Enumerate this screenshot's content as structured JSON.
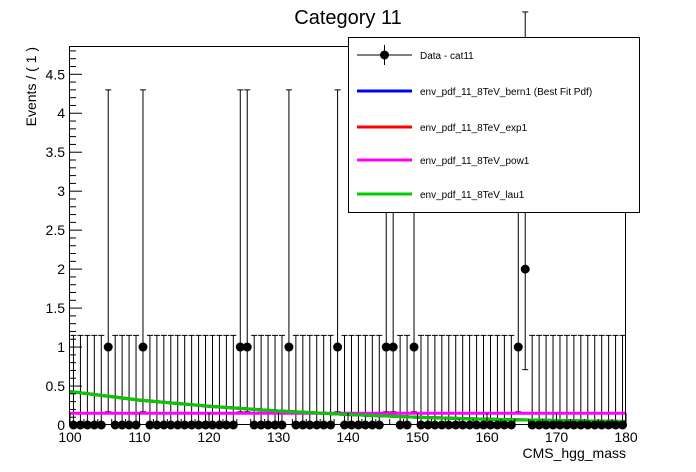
{
  "chart_data": {
    "type": "scatter",
    "title": "Category 11",
    "xlabel": "CMS_hgg_mass",
    "ylabel": "Events / ( 1 )",
    "xlim": [
      100,
      180
    ],
    "ylim": [
      0,
      4.85
    ],
    "x_ticks": [
      "100",
      "110",
      "120",
      "130",
      "140",
      "150",
      "160",
      "170",
      "180"
    ],
    "y_ticks": [
      "0",
      "0.5",
      "1",
      "1.5",
      "2",
      "2.5",
      "3",
      "3.5",
      "4",
      "4.5"
    ],
    "legend_position": "top-right",
    "data_series": {
      "name": "Data - cat11",
      "color": "#000000",
      "points": [
        {
          "x": 100.5,
          "y": 0
        },
        {
          "x": 101.5,
          "y": 0
        },
        {
          "x": 102.5,
          "y": 0
        },
        {
          "x": 103.5,
          "y": 0
        },
        {
          "x": 104.5,
          "y": 0
        },
        {
          "x": 105.5,
          "y": 1
        },
        {
          "x": 106.5,
          "y": 0
        },
        {
          "x": 107.5,
          "y": 0
        },
        {
          "x": 108.5,
          "y": 0
        },
        {
          "x": 109.5,
          "y": 0
        },
        {
          "x": 110.5,
          "y": 1
        },
        {
          "x": 111.5,
          "y": 0
        },
        {
          "x": 112.5,
          "y": 0
        },
        {
          "x": 113.5,
          "y": 0
        },
        {
          "x": 114.5,
          "y": 0
        },
        {
          "x": 115.5,
          "y": 0
        },
        {
          "x": 116.5,
          "y": 0
        },
        {
          "x": 117.5,
          "y": 0
        },
        {
          "x": 118.5,
          "y": 0
        },
        {
          "x": 119.5,
          "y": 0
        },
        {
          "x": 120.5,
          "y": 0
        },
        {
          "x": 121.5,
          "y": 0
        },
        {
          "x": 122.5,
          "y": 0
        },
        {
          "x": 123.5,
          "y": 0
        },
        {
          "x": 124.5,
          "y": 1
        },
        {
          "x": 125.5,
          "y": 1
        },
        {
          "x": 126.5,
          "y": 0
        },
        {
          "x": 127.5,
          "y": 0
        },
        {
          "x": 128.5,
          "y": 0
        },
        {
          "x": 129.5,
          "y": 0
        },
        {
          "x": 130.5,
          "y": 0
        },
        {
          "x": 131.5,
          "y": 1
        },
        {
          "x": 132.5,
          "y": 0
        },
        {
          "x": 133.5,
          "y": 0
        },
        {
          "x": 134.5,
          "y": 0
        },
        {
          "x": 135.5,
          "y": 0
        },
        {
          "x": 136.5,
          "y": 0
        },
        {
          "x": 137.5,
          "y": 0
        },
        {
          "x": 138.5,
          "y": 1
        },
        {
          "x": 139.5,
          "y": 0
        },
        {
          "x": 140.5,
          "y": 0
        },
        {
          "x": 141.5,
          "y": 0
        },
        {
          "x": 142.5,
          "y": 0
        },
        {
          "x": 143.5,
          "y": 0
        },
        {
          "x": 144.5,
          "y": 0
        },
        {
          "x": 145.5,
          "y": 1
        },
        {
          "x": 146.5,
          "y": 1
        },
        {
          "x": 147.5,
          "y": 0
        },
        {
          "x": 148.5,
          "y": 0
        },
        {
          "x": 149.5,
          "y": 1
        },
        {
          "x": 150.5,
          "y": 0
        },
        {
          "x": 151.5,
          "y": 0
        },
        {
          "x": 152.5,
          "y": 0
        },
        {
          "x": 153.5,
          "y": 0
        },
        {
          "x": 154.5,
          "y": 0
        },
        {
          "x": 155.5,
          "y": 0
        },
        {
          "x": 156.5,
          "y": 0
        },
        {
          "x": 157.5,
          "y": 0
        },
        {
          "x": 158.5,
          "y": 0
        },
        {
          "x": 159.5,
          "y": 0
        },
        {
          "x": 160.5,
          "y": 0
        },
        {
          "x": 161.5,
          "y": 0
        },
        {
          "x": 162.5,
          "y": 0
        },
        {
          "x": 163.5,
          "y": 0
        },
        {
          "x": 164.5,
          "y": 1
        },
        {
          "x": 165.5,
          "y": 2
        },
        {
          "x": 166.5,
          "y": 0
        },
        {
          "x": 167.5,
          "y": 0
        },
        {
          "x": 168.5,
          "y": 0
        },
        {
          "x": 169.5,
          "y": 0
        },
        {
          "x": 170.5,
          "y": 0
        },
        {
          "x": 171.5,
          "y": 0
        },
        {
          "x": 172.5,
          "y": 0
        },
        {
          "x": 173.5,
          "y": 0
        },
        {
          "x": 174.5,
          "y": 0
        },
        {
          "x": 175.5,
          "y": 0
        },
        {
          "x": 176.5,
          "y": 0
        },
        {
          "x": 177.5,
          "y": 0
        },
        {
          "x": 178.5,
          "y": 0
        },
        {
          "x": 179.5,
          "y": 0
        }
      ],
      "errors": {
        "0": [
          0,
          1.15
        ],
        "1": [
          0.83,
          3.3
        ],
        "2": [
          1.29,
          3.3
        ]
      }
    },
    "curve_series": [
      {
        "name": "env_pdf_11_8TeV_bern1 (Best Fit Pdf)",
        "color": "#0000ff",
        "x": [
          100,
          110,
          120,
          130,
          140,
          150,
          160,
          170,
          180
        ],
        "y": [
          0.43,
          0.32,
          0.24,
          0.18,
          0.135,
          0.1,
          0.075,
          0.058,
          0.045
        ]
      },
      {
        "name": "env_pdf_11_8TeV_exp1",
        "color": "#ff0000",
        "x": [
          100,
          110,
          120,
          130,
          140,
          150,
          160,
          170,
          180
        ],
        "y": [
          0.43,
          0.32,
          0.24,
          0.18,
          0.135,
          0.1,
          0.075,
          0.058,
          0.045
        ]
      },
      {
        "name": "env_pdf_11_8TeV_pow1",
        "color": "#ff00ff",
        "x": [
          100,
          180
        ],
        "y": [
          0.15,
          0.15
        ]
      },
      {
        "name": "env_pdf_11_8TeV_lau1",
        "color": "#00cc00",
        "x": [
          100,
          110,
          120,
          130,
          140,
          150,
          160,
          170,
          180
        ],
        "y": [
          0.43,
          0.32,
          0.24,
          0.18,
          0.135,
          0.1,
          0.075,
          0.058,
          0.045
        ]
      }
    ]
  }
}
